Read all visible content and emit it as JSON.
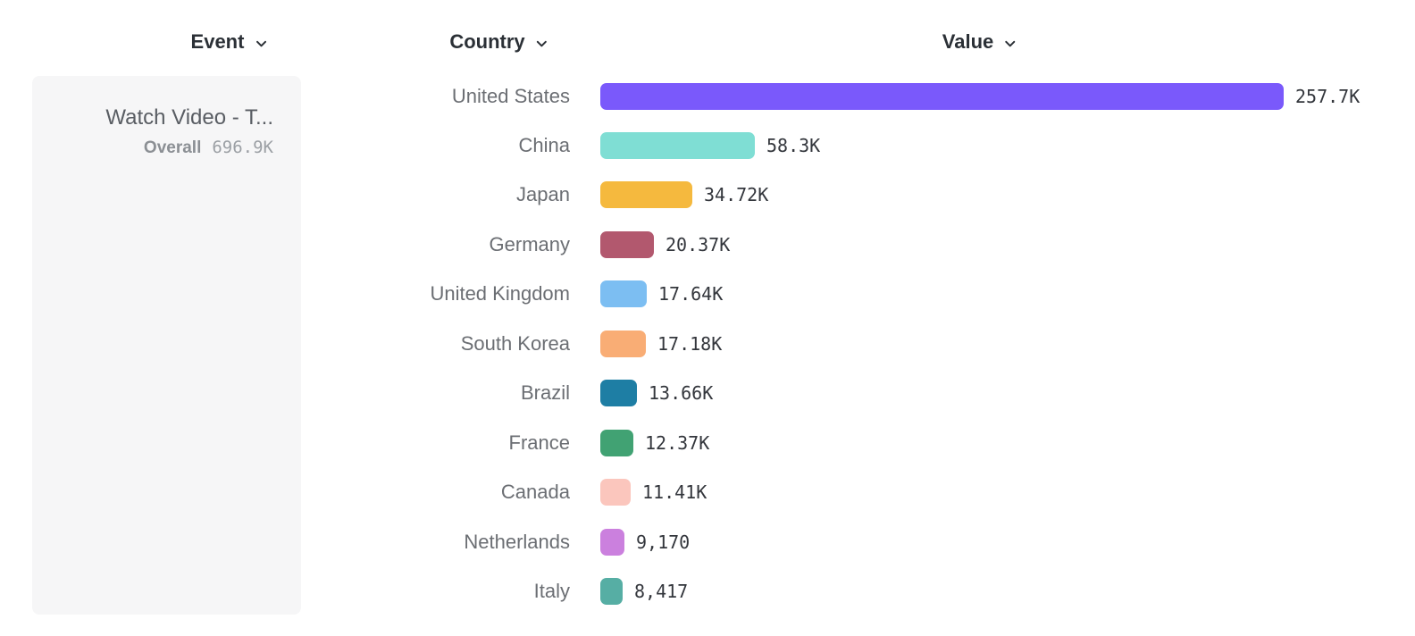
{
  "columns": {
    "event": {
      "label": "Event"
    },
    "country": {
      "label": "Country"
    },
    "value": {
      "label": "Value"
    }
  },
  "event_card": {
    "title": "Watch Video - T...",
    "metric_label": "Overall",
    "metric_value": "696.9K"
  },
  "chart_data": {
    "type": "bar",
    "orientation": "horizontal",
    "title": "",
    "xlabel": "Value",
    "ylabel": "Country",
    "grid": false,
    "legend": "none",
    "x_max": 257700,
    "categories": [
      "United States",
      "China",
      "Japan",
      "Germany",
      "United Kingdom",
      "South Korea",
      "Brazil",
      "France",
      "Canada",
      "Netherlands",
      "Italy"
    ],
    "values": [
      257700,
      58300,
      34720,
      20370,
      17640,
      17180,
      13660,
      12370,
      11410,
      9170,
      8417
    ],
    "value_labels": [
      "257.7K",
      "58.3K",
      "34.72K",
      "20.37K",
      "17.64K",
      "17.18K",
      "13.66K",
      "12.37K",
      "11.41K",
      "9,170",
      "8,417"
    ],
    "colors": [
      "#7A59FB",
      "#7FDED4",
      "#F5B93E",
      "#B2586E",
      "#7CBEF2",
      "#F9AD75",
      "#1E7EA4",
      "#41A273",
      "#FBC6BD",
      "#CB80DE",
      "#56AEA4"
    ]
  }
}
